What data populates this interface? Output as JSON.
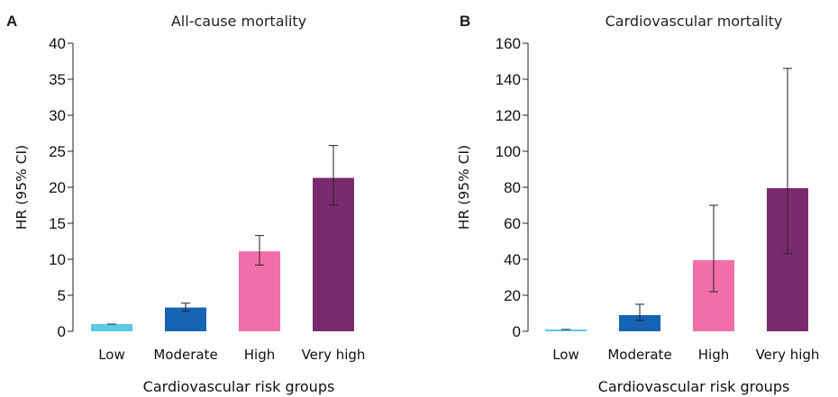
{
  "chart_data": [
    {
      "type": "bar",
      "panel": "A",
      "title": "All-cause mortality",
      "xlabel": "Cardiovascular risk groups",
      "ylabel": "HR (95% CI)",
      "categories": [
        "Low",
        "Moderate",
        "High",
        "Very high"
      ],
      "values": [
        1.0,
        3.3,
        11.1,
        21.3
      ],
      "ci_lower": [
        1.0,
        2.8,
        9.2,
        17.5
      ],
      "ci_upper": [
        1.0,
        3.9,
        13.3,
        25.8
      ],
      "colors": [
        "#5bc8e8",
        "#1764b5",
        "#f26ea9",
        "#7b2a6f"
      ],
      "ylim": [
        0,
        40
      ],
      "yticks": [
        0,
        5,
        10,
        15,
        20,
        25,
        30,
        35,
        40
      ],
      "grid": false
    },
    {
      "type": "bar",
      "panel": "B",
      "title": "Cardiovascular mortality",
      "xlabel": "Cardiovascular risk groups",
      "ylabel": "HR (95% CI)",
      "categories": [
        "Low",
        "Moderate",
        "High",
        "Very high"
      ],
      "values": [
        1.0,
        9.0,
        39.5,
        79.5
      ],
      "ci_lower": [
        1.0,
        6.0,
        22.0,
        43.0
      ],
      "ci_upper": [
        1.0,
        15.0,
        70.0,
        146.0
      ],
      "colors": [
        "#5bc8e8",
        "#1764b5",
        "#f26ea9",
        "#7b2a6f"
      ],
      "ylim": [
        0,
        160
      ],
      "yticks": [
        0,
        20,
        40,
        60,
        80,
        100,
        120,
        140,
        160
      ],
      "grid": false
    }
  ]
}
